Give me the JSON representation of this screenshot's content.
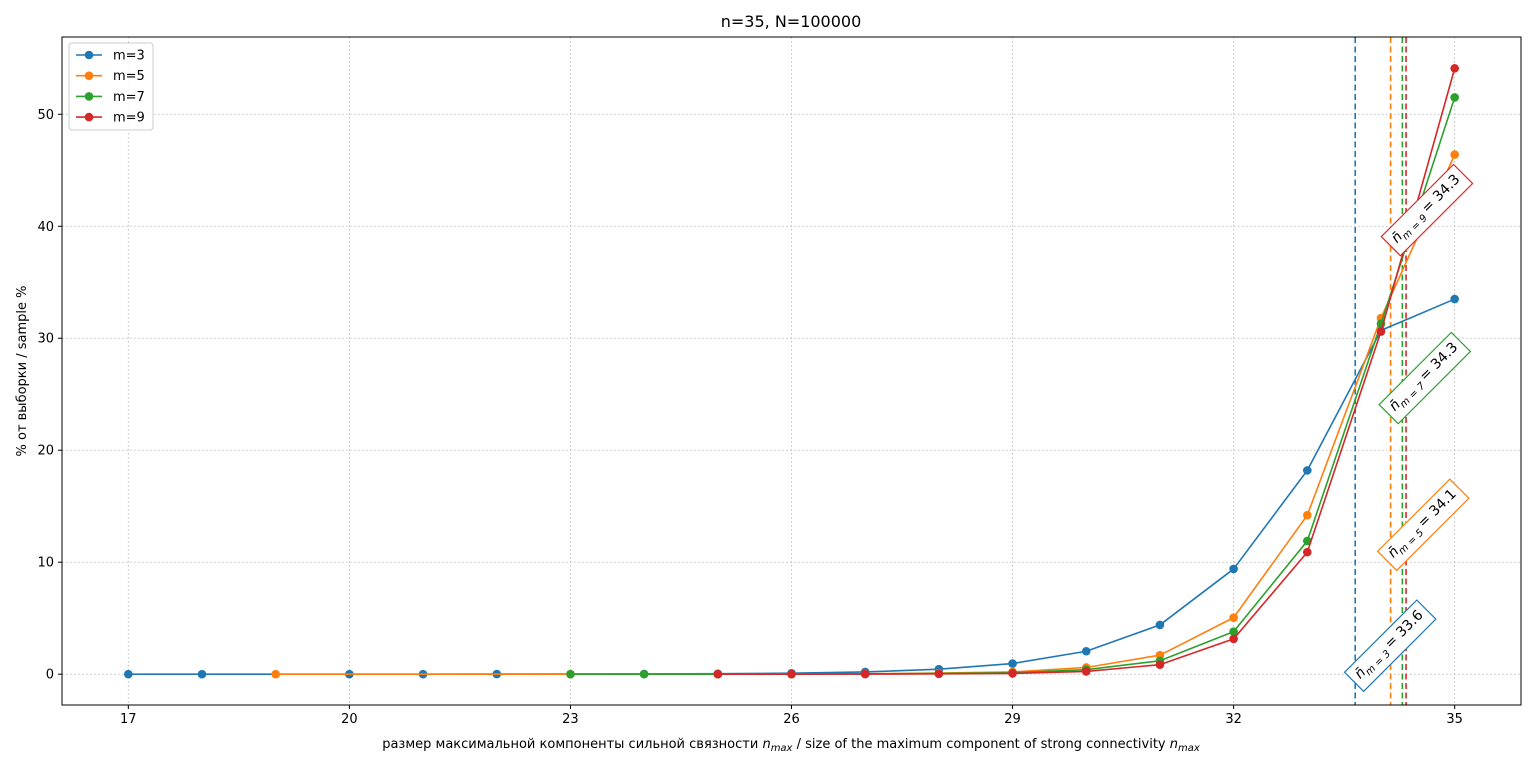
{
  "chart_data": {
    "type": "line",
    "title": "n=35, N=100000",
    "xlabel": "размер максимальной компоненты сильной связности n_max / size of the maximum component of strong connectivity n_max",
    "xlabel_parts": {
      "prefix": "размер максимальной компоненты сильной связности ",
      "sym1": "n",
      "sub1": "max",
      "mid": " / size of the maximum component of strong connectivity ",
      "sym2": "n",
      "sub2": "max"
    },
    "ylabel": "% от выборки / sample %",
    "xlim": [
      16.1,
      35.9
    ],
    "ylim": [
      -2.75,
      56.9
    ],
    "xticks": [
      17,
      20,
      23,
      26,
      29,
      32,
      35
    ],
    "yticks": [
      0,
      10,
      20,
      30,
      40,
      50
    ],
    "grid": true,
    "legend_position": "top-left",
    "series": [
      {
        "name": "m=3",
        "color": "#1f77b4",
        "x": [
          17,
          18,
          20,
          21,
          22,
          24,
          25,
          26,
          27,
          28,
          29,
          30,
          31,
          32,
          33,
          34,
          35
        ],
        "y": [
          0.001,
          0.001,
          0.002,
          0.003,
          0.01,
          0.02,
          0.05,
          0.09,
          0.2,
          0.45,
          0.95,
          2.05,
          4.4,
          9.4,
          18.2,
          30.7,
          33.5
        ]
      },
      {
        "name": "m=5",
        "color": "#ff7f0e",
        "x": [
          19,
          23,
          25,
          26,
          27,
          28,
          29,
          30,
          31,
          32,
          33,
          34,
          35
        ],
        "y": [
          0.001,
          0.002,
          0.01,
          0.02,
          0.04,
          0.1,
          0.2,
          0.6,
          1.7,
          5.05,
          14.2,
          31.8,
          46.4
        ]
      },
      {
        "name": "m=7",
        "color": "#2ca02c",
        "x": [
          23,
          24,
          25,
          26,
          27,
          28,
          29,
          30,
          31,
          32,
          33,
          34,
          35
        ],
        "y": [
          0.001,
          0.002,
          0.005,
          0.01,
          0.03,
          0.06,
          0.13,
          0.4,
          1.2,
          3.8,
          11.9,
          31.3,
          51.5
        ]
      },
      {
        "name": "m=9",
        "color": "#d62728",
        "x": [
          25,
          26,
          27,
          28,
          29,
          30,
          31,
          32,
          33,
          34,
          35
        ],
        "y": [
          0.001,
          0.003,
          0.01,
          0.03,
          0.07,
          0.25,
          0.85,
          3.15,
          10.9,
          30.6,
          54.1
        ]
      }
    ],
    "vlines": [
      {
        "x": 33.65,
        "color": "#1f77b4"
      },
      {
        "x": 34.13,
        "color": "#ff7f0e"
      },
      {
        "x": 34.29,
        "color": "#2ca02c"
      },
      {
        "x": 34.34,
        "color": "#d62728"
      }
    ],
    "annotations": [
      {
        "series": "m=3",
        "sym": "n̄",
        "sub": "m = 3",
        "value": "= 33.6",
        "color": "#1f77b4",
        "x": 34.1,
        "y": 2.7
      },
      {
        "series": "m=5",
        "sym": "n̄",
        "sub": "m = 5",
        "value": "= 34.1",
        "color": "#ff7f0e",
        "x": 34.55,
        "y": 13.5
      },
      {
        "series": "m=7",
        "sym": "n̄",
        "sub": "m = 7",
        "value": "= 34.3",
        "color": "#2ca02c",
        "x": 34.57,
        "y": 26.6
      },
      {
        "series": "m=9",
        "sym": "n̄",
        "sub": "m = 9",
        "value": "= 34.3",
        "color": "#d62728",
        "x": 34.6,
        "y": 41.6
      }
    ]
  }
}
